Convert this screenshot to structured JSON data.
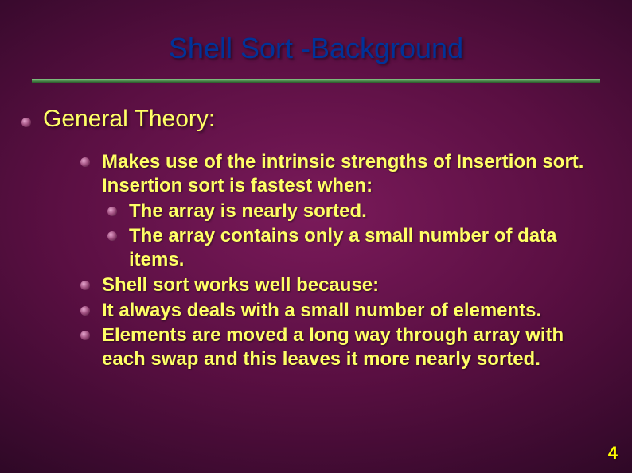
{
  "colors": {
    "title": "#003399",
    "subtitle": "#ffff66",
    "body": "#ffff66",
    "pagenum": "#ffff00",
    "bullet_hi": "#e8a8d0",
    "bullet_lo": "#8a3a6a"
  },
  "title": "Shell Sort -Background",
  "subtitle": "General Theory:",
  "items": [
    {
      "level": 1,
      "text": "Makes use of the intrinsic strengths of Insertion sort. Insertion sort is fastest when:"
    },
    {
      "level": 2,
      "text": "The array is nearly sorted."
    },
    {
      "level": 2,
      "text": "The array contains only a small number of data items."
    },
    {
      "level": 1,
      "text": "Shell sort works well because:"
    },
    {
      "level": 1,
      "text": "It always deals with a small number of elements."
    },
    {
      "level": 1,
      "text": "Elements are moved a long way through array with each swap and this leaves it more nearly sorted."
    }
  ],
  "page_number": "4"
}
